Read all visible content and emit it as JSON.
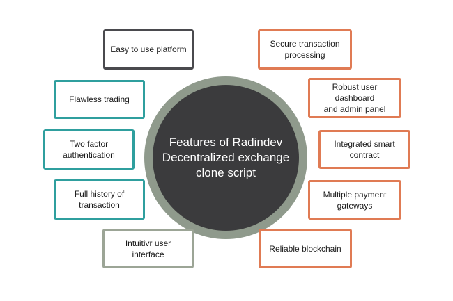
{
  "diagram": {
    "center_title": "Features of Radindev\nDecentralized exchange\nclone script",
    "left_features": [
      {
        "label": "Easy to use platform",
        "color": "#4a4a4e"
      },
      {
        "label": "Flawless trading",
        "color": "#2f9f9e"
      },
      {
        "label": "Two factor\nauthentication",
        "color": "#2f9f9e"
      },
      {
        "label": "Full history of\ntransaction",
        "color": "#2f9f9e"
      },
      {
        "label": "Intuitivr user interface",
        "color": "#9ca596"
      }
    ],
    "right_features": [
      {
        "label": "Secure transaction\nprocessing",
        "color": "#e07b54"
      },
      {
        "label": "Robust user dashboard\nand admin panel",
        "color": "#e07b54"
      },
      {
        "label": "Integrated smart\ncontract",
        "color": "#e07b54"
      },
      {
        "label": "Multiple payment\ngateways",
        "color": "#e07b54"
      },
      {
        "label": "Reliable blockchain",
        "color": "#e07b54"
      }
    ]
  }
}
